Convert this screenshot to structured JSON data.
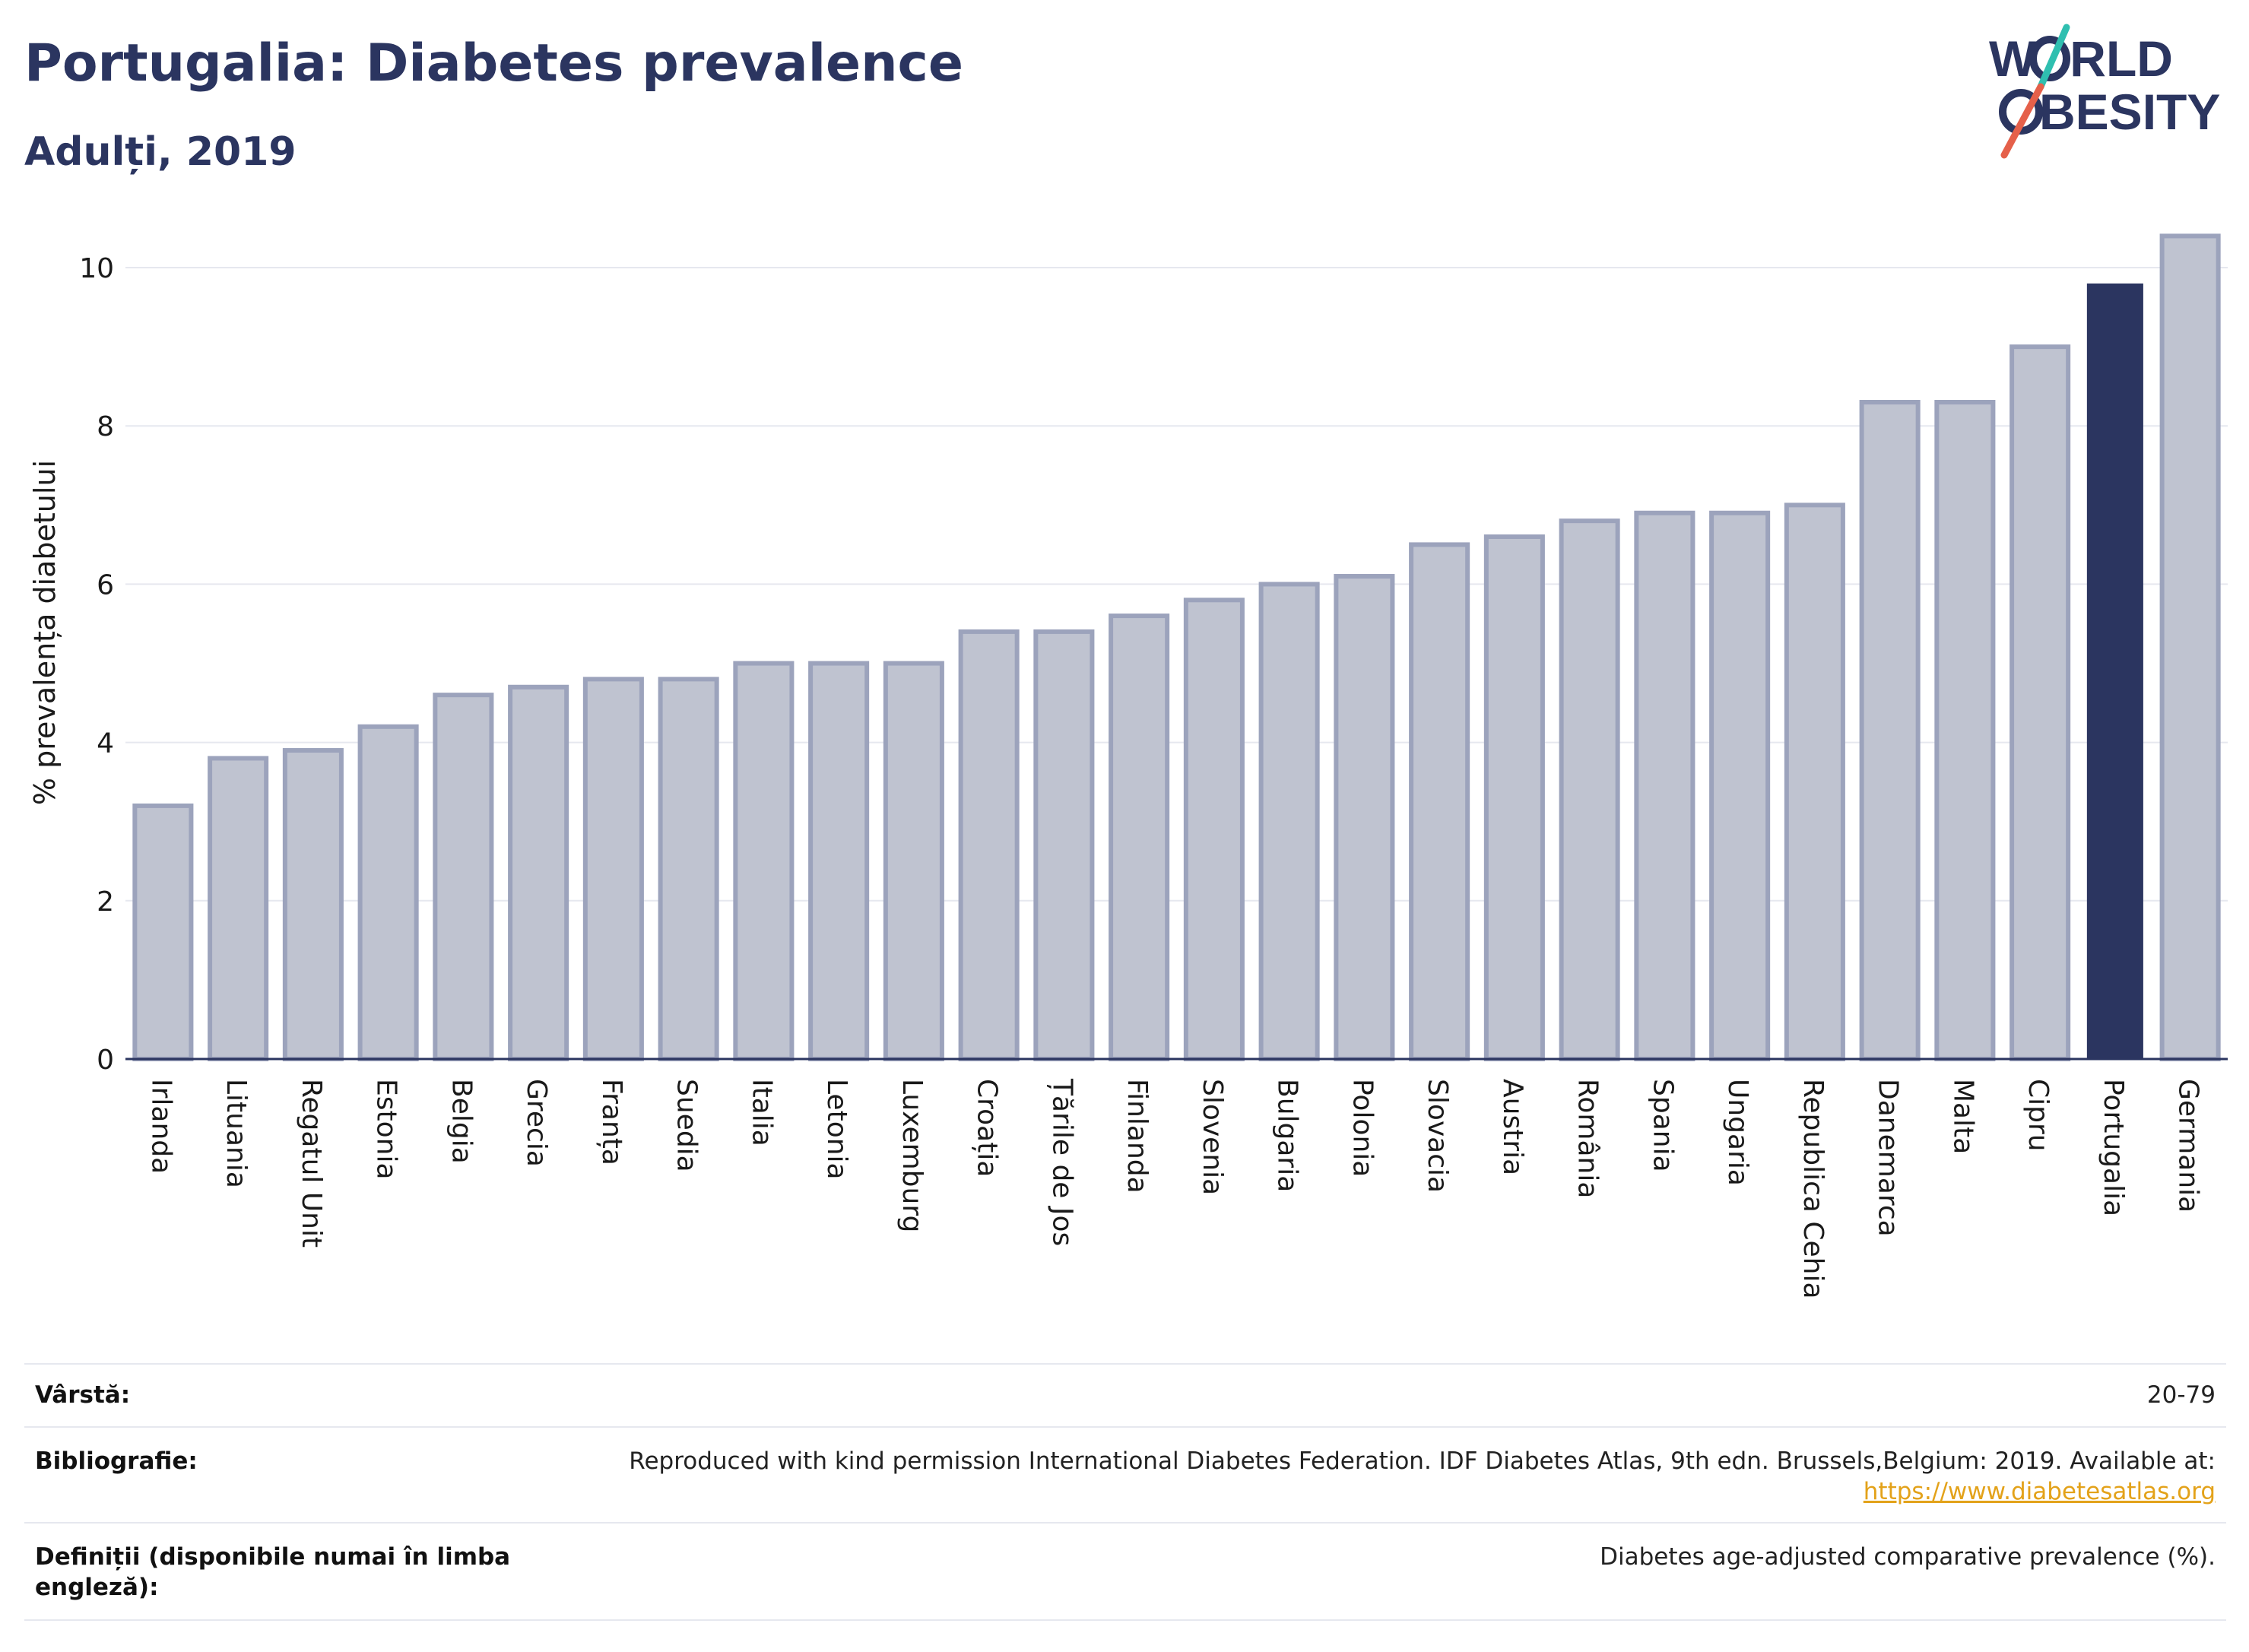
{
  "header": {
    "title": "Portugalia: Diabetes prevalence",
    "subtitle": "Adulți, 2019"
  },
  "logo": {
    "line1": "W",
    "line1_rest": "RLD",
    "line2_rest": "BESITY",
    "colors": {
      "text": "#2b3560",
      "slash_top": "#2fbfb0",
      "slash_bottom": "#e5604a"
    }
  },
  "colors": {
    "bar": "#bfc3d0",
    "bar_border": "#9ca3bc",
    "highlight": "#2b3560",
    "grid": "#e6e8ef",
    "axis": "#2b3560"
  },
  "chart_data": {
    "type": "bar",
    "ylabel": "% prevalența diabetului",
    "ylim": [
      0,
      10.5
    ],
    "yticks": [
      0,
      2,
      4,
      6,
      8,
      10
    ],
    "grid": true,
    "highlight": "Portugalia",
    "categories": [
      "Irlanda",
      "Lituania",
      "Regatul Unit",
      "Estonia",
      "Belgia",
      "Grecia",
      "Franța",
      "Suedia",
      "Italia",
      "Letonia",
      "Luxemburg",
      "Croația",
      "Țările de Jos",
      "Finlanda",
      "Slovenia",
      "Bulgaria",
      "Polonia",
      "Slovacia",
      "Austria",
      "România",
      "Spania",
      "Ungaria",
      "Republica Cehia",
      "Danemarca",
      "Malta",
      "Cipru",
      "Portugalia",
      "Germania"
    ],
    "values": [
      3.2,
      3.8,
      3.9,
      4.2,
      4.6,
      4.7,
      4.8,
      4.8,
      5.0,
      5.0,
      5.0,
      5.4,
      5.4,
      5.6,
      5.8,
      6.0,
      6.1,
      6.5,
      6.6,
      6.8,
      6.9,
      6.9,
      7.0,
      8.3,
      8.3,
      9.0,
      9.8,
      10.4
    ]
  },
  "meta": {
    "age_label": "Vârstă:",
    "age_value": "20-79",
    "bibliography_label": "Bibliografie:",
    "bibliography_text": "Reproduced with kind permission International Diabetes Federation. IDF Diabetes Atlas, 9th edn. Brussels,Belgium: 2019. Available at:",
    "bibliography_link": "https://www.diabetesatlas.org",
    "definitions_label_line1": "Definiții (disponibile numai în limba",
    "definitions_label_line2": "engleză):",
    "definitions_value": "Diabetes age-adjusted comparative prevalence (%)."
  }
}
